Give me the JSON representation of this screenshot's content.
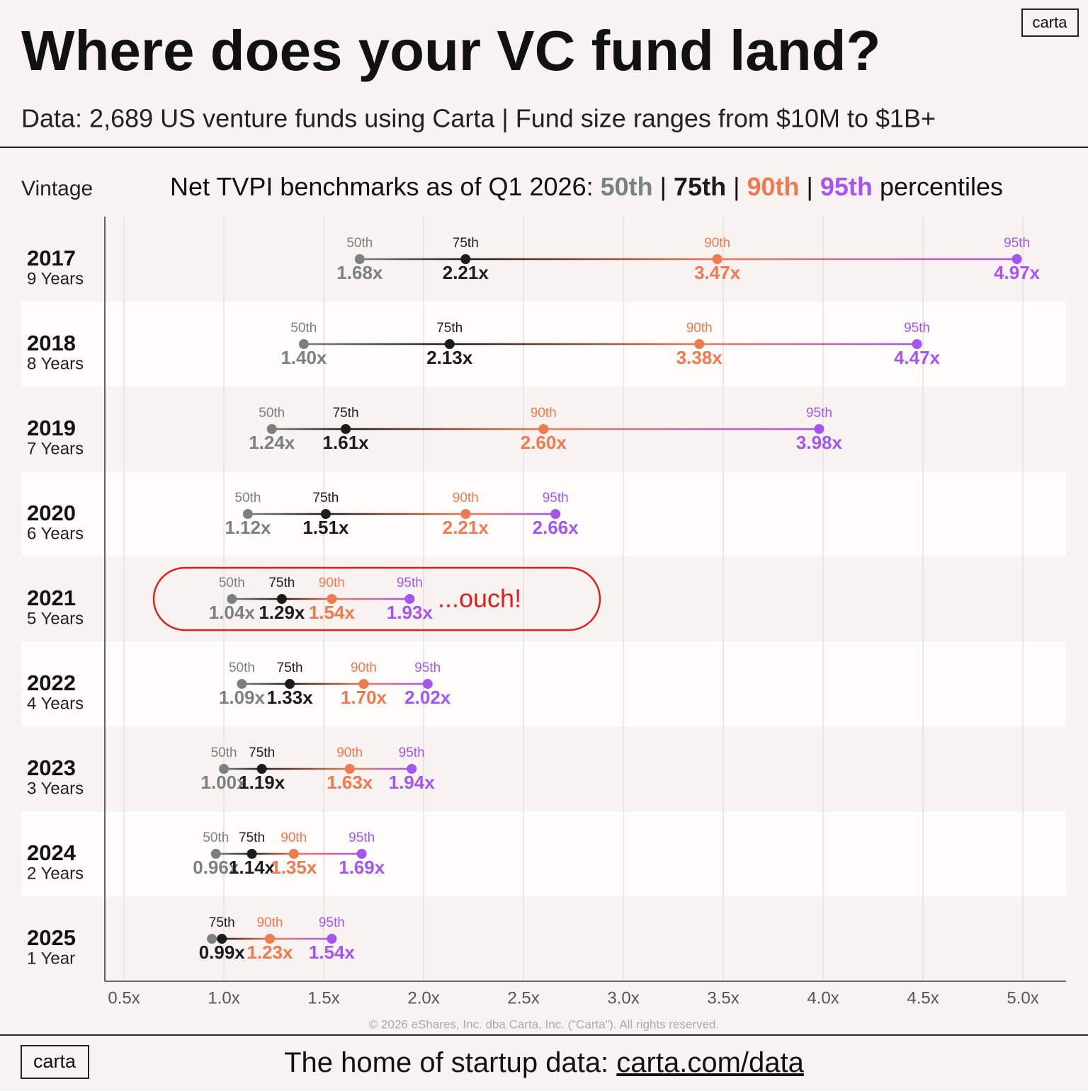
{
  "chart_data": {
    "type": "dumbbell",
    "title": "Where does your VC fund land?",
    "subtitle": "Data: 2,689 US venture funds using Carta | Fund size ranges from $10M to $1B+",
    "category_axis_label": "Vintage",
    "chart_header": {
      "prefix": "Net TVPI benchmarks as of Q1 2026:",
      "separator": "|",
      "suffix": "percentiles"
    },
    "categories": [
      "2017",
      "2018",
      "2019",
      "2020",
      "2021",
      "2022",
      "2023",
      "2024",
      "2025"
    ],
    "category_sublabels": [
      "9 Years",
      "8 Years",
      "7 Years",
      "6 Years",
      "5 Years",
      "4 Years",
      "3 Years",
      "2 Years",
      "1 Year"
    ],
    "series": [
      {
        "name": "50th",
        "color": "#7b8080",
        "values": [
          1.68,
          1.4,
          1.24,
          1.12,
          1.04,
          1.09,
          1.0,
          0.96,
          0.94
        ],
        "value_labels": [
          "1.68x",
          "1.40x",
          "1.24x",
          "1.12x",
          "1.04x",
          "1.09x",
          "1.00x",
          "0.96x",
          null
        ]
      },
      {
        "name": "75th",
        "color": "#1c1c1c",
        "values": [
          2.21,
          2.13,
          1.61,
          1.51,
          1.29,
          1.33,
          1.19,
          1.14,
          0.99
        ],
        "value_labels": [
          "2.21x",
          "2.13x",
          "1.61x",
          "1.51x",
          "1.29x",
          "1.33x",
          "1.19x",
          "1.14x",
          "0.99x"
        ]
      },
      {
        "name": "90th",
        "color": "#f07a50",
        "values": [
          3.47,
          3.38,
          2.6,
          2.21,
          1.54,
          1.7,
          1.63,
          1.35,
          1.23
        ],
        "value_labels": [
          "3.47x",
          "3.38x",
          "2.60x",
          "2.21x",
          "1.54x",
          "1.70x",
          "1.63x",
          "1.35x",
          "1.23x"
        ]
      },
      {
        "name": "95th",
        "color": "#a656f0",
        "values": [
          4.97,
          4.47,
          3.98,
          2.66,
          1.93,
          2.02,
          1.94,
          1.69,
          1.54
        ],
        "value_labels": [
          "4.97x",
          "4.47x",
          "3.98x",
          "2.66x",
          "1.93x",
          "2.02x",
          "1.94x",
          "1.69x",
          "1.54x"
        ]
      }
    ],
    "xlim": [
      0.404,
      5.216
    ],
    "xticks": [
      {
        "value": 0.5,
        "label": "0.5x"
      },
      {
        "value": 1.0,
        "label": "1.0x"
      },
      {
        "value": 1.5,
        "label": "1.5x"
      },
      {
        "value": 2.0,
        "label": "2.0x"
      },
      {
        "value": 2.5,
        "label": "2.5x"
      },
      {
        "value": 3.0,
        "label": "3.0x"
      },
      {
        "value": 3.5,
        "label": "3.5x"
      },
      {
        "value": 4.0,
        "label": "4.0x"
      },
      {
        "value": 4.5,
        "label": "4.5x"
      },
      {
        "value": 5.0,
        "label": "5.0x"
      }
    ],
    "grid": true,
    "annotations": [
      {
        "text": "...ouch!",
        "category": "2021",
        "color": "#e0201b"
      }
    ],
    "copyright": "© 2026 eShares, Inc. dba Carta, Inc. (“Carta”). All rights reserved.",
    "logo": "carta",
    "footer": {
      "text": "The home of startup data:",
      "link": "carta.com/data"
    }
  }
}
